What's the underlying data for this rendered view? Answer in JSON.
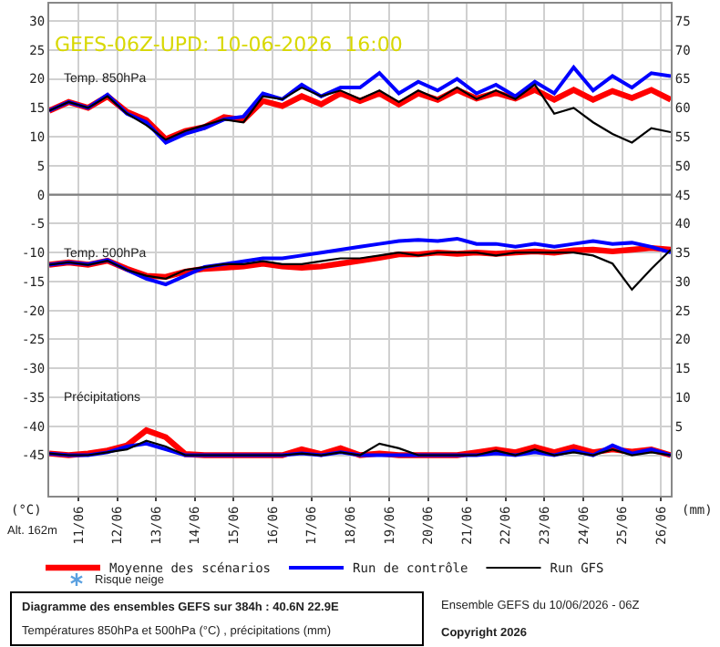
{
  "chart_data": {
    "type": "line",
    "title": "GEFS-06Z-UPD: 10-06-2026  16:00",
    "ylabel": "(°C)",
    "y2label": "(mm)",
    "x": [
      "2026-06-10T06:00",
      "2026-06-10T18:00",
      "2026-06-11T06:00",
      "2026-06-11T18:00",
      "2026-06-12T06:00",
      "2026-06-12T18:00",
      "2026-06-13T06:00",
      "2026-06-13T18:00",
      "2026-06-14T06:00",
      "2026-06-14T18:00",
      "2026-06-15T06:00",
      "2026-06-15T18:00",
      "2026-06-16T06:00",
      "2026-06-16T18:00",
      "2026-06-17T06:00",
      "2026-06-17T18:00",
      "2026-06-18T06:00",
      "2026-06-18T18:00",
      "2026-06-19T06:00",
      "2026-06-19T18:00",
      "2026-06-20T06:00",
      "2026-06-20T18:00",
      "2026-06-21T06:00",
      "2026-06-21T18:00",
      "2026-06-22T06:00",
      "2026-06-22T18:00",
      "2026-06-23T06:00",
      "2026-06-23T18:00",
      "2026-06-24T06:00",
      "2026-06-24T18:00",
      "2026-06-25T06:00",
      "2026-06-25T18:00",
      "2026-06-26T06:00"
    ],
    "series": [
      {
        "name": "Moyenne des scénarios",
        "color": "#ff0000",
        "values": [
          14.5,
          16,
          15,
          17,
          14.3,
          12.9,
          9.6,
          11,
          11.7,
          13.4,
          12.9,
          16.2,
          15.3,
          17,
          15.6,
          17.5,
          16.2,
          17.5,
          15.6,
          17.5,
          16.4,
          18.1,
          16.6,
          17.6,
          16.6,
          18.1,
          16.4,
          18.1,
          16.4,
          17.9,
          16.7,
          18.1,
          16.4
        ]
      },
      {
        "name": "Run de contrôle",
        "color": "#0000ff",
        "values": [
          14.5,
          16,
          15,
          17.3,
          14,
          12.5,
          9,
          10.5,
          11.5,
          13,
          13.5,
          17.5,
          16.5,
          19,
          17,
          18.5,
          18.5,
          21,
          17.5,
          19.5,
          18,
          20,
          17.5,
          19,
          17,
          19.5,
          17.5,
          22,
          18,
          20.5,
          18.5,
          21,
          20.5
        ]
      },
      {
        "name": "Run GFS",
        "color": "#000000",
        "values": [
          14.5,
          16,
          15,
          17,
          14,
          12,
          9.5,
          11,
          12,
          13,
          12.5,
          17,
          16.5,
          18.5,
          17,
          18,
          16.5,
          18,
          16,
          18,
          16.5,
          18.5,
          16.5,
          18,
          16.5,
          19,
          14,
          15,
          12.5,
          10.5,
          9,
          11.5,
          10.8
        ]
      },
      {
        "color": "#ff0000",
        "values": [
          -12.1,
          -11.7,
          -12.1,
          -11.4,
          -12.8,
          -14,
          -14.2,
          -13.3,
          -12.8,
          -12.6,
          -12.4,
          -11.9,
          -12.4,
          -12.6,
          -12.4,
          -11.9,
          -11.4,
          -10.9,
          -10.3,
          -10.3,
          -10,
          -10.2,
          -10,
          -10.2,
          -10,
          -9.8,
          -10,
          -9.6,
          -9.5,
          -9.8,
          -9.5,
          -9.2,
          -9.5
        ]
      },
      {
        "color": "#0000ff",
        "values": [
          -12.1,
          -11.7,
          -12,
          -11.3,
          -13,
          -14.5,
          -15.5,
          -14,
          -12.5,
          -12,
          -11.5,
          -11,
          -11,
          -10.5,
          -10,
          -9.5,
          -9,
          -8.5,
          -8,
          -7.8,
          -8,
          -7.6,
          -8.5,
          -8.5,
          -9,
          -8.5,
          -9,
          -8.5,
          -8,
          -8.5,
          -8.3,
          -9,
          -10
        ]
      },
      {
        "color": "#000000",
        "values": [
          -12.1,
          -11.7,
          -12.1,
          -11.4,
          -13,
          -14,
          -14.5,
          -13,
          -12.5,
          -12,
          -12,
          -11.5,
          -12,
          -12,
          -11.5,
          -11,
          -11,
          -10.5,
          -10,
          -10.5,
          -10,
          -10,
          -10,
          -10.5,
          -10,
          -10,
          -10,
          -10,
          -10.5,
          -11.9,
          -16.4,
          -12.8,
          -9.5
        ]
      },
      {
        "color": "#ff0000",
        "axis": "y2",
        "values": [
          0.3,
          0,
          0.3,
          0.8,
          1.7,
          4.3,
          3.1,
          0.2,
          0,
          0,
          0,
          0,
          0,
          1,
          0.2,
          1.2,
          0,
          0.3,
          0,
          0,
          0,
          0,
          0.5,
          1,
          0.5,
          1.4,
          0.5,
          1.4,
          0.5,
          1,
          0.6,
          1,
          0
        ]
      },
      {
        "color": "#0000ff",
        "axis": "y2",
        "values": [
          0.3,
          0,
          0,
          0.5,
          1.5,
          2,
          1,
          0,
          0,
          0,
          0,
          0,
          0,
          0.3,
          0,
          0.5,
          0,
          0,
          0,
          0,
          0,
          0,
          0,
          0.3,
          0,
          0.5,
          0,
          0.8,
          0,
          1.7,
          0.3,
          1,
          0
        ]
      },
      {
        "color": "#000000",
        "axis": "y2",
        "values": [
          0.3,
          0,
          0,
          0.5,
          1,
          2.5,
          1.5,
          0,
          0,
          0,
          0,
          0,
          0,
          0.3,
          0,
          0.5,
          0,
          2,
          1.2,
          0,
          0,
          0,
          0,
          0.8,
          0,
          1,
          0,
          0.5,
          0,
          1,
          0,
          0.5,
          0
        ]
      }
    ],
    "xlim": [
      "2026-06-10T06:00",
      "2026-06-26T06:00"
    ],
    "xticks": [
      {
        "value": "2026-06-11",
        "label": "11/06"
      },
      {
        "value": "2026-06-12",
        "label": "12/06"
      },
      {
        "value": "2026-06-13",
        "label": "13/06"
      },
      {
        "value": "2026-06-14",
        "label": "14/06"
      },
      {
        "value": "2026-06-15",
        "label": "15/06"
      },
      {
        "value": "2026-06-16",
        "label": "16/06"
      },
      {
        "value": "2026-06-17",
        "label": "17/06"
      },
      {
        "value": "2026-06-18",
        "label": "18/06"
      },
      {
        "value": "2026-06-19",
        "label": "19/06"
      },
      {
        "value": "2026-06-20",
        "label": "20/06"
      },
      {
        "value": "2026-06-21",
        "label": "21/06"
      },
      {
        "value": "2026-06-22",
        "label": "22/06"
      },
      {
        "value": "2026-06-23",
        "label": "23/06"
      },
      {
        "value": "2026-06-24",
        "label": "24/06"
      },
      {
        "value": "2026-06-25",
        "label": "25/06"
      },
      {
        "value": "2026-06-26",
        "label": "26/06"
      }
    ],
    "ylim": [
      -52,
      33
    ],
    "yticks": [
      -45,
      -40,
      -35,
      -30,
      -25,
      -20,
      -15,
      -10,
      -5,
      0,
      5,
      10,
      15,
      20,
      25,
      30
    ],
    "y2lim": [
      -7,
      78
    ],
    "y2ticks": [
      0,
      5,
      10,
      15,
      20,
      25,
      30,
      35,
      40,
      45,
      50,
      55,
      60,
      65,
      70,
      75
    ],
    "ref_lines": [
      {
        "axis": "y",
        "value": 0,
        "color": "#808080"
      }
    ],
    "grid": true,
    "legend": "bottom",
    "marker": "none",
    "line_style": "solid",
    "annotations": [
      "Temp. 850hPa",
      "Temp. 500hPa",
      "Précipitations",
      "Alt. 162m",
      "Risque neige",
      "Diagramme des ensembles GEFS sur 384h : 40.6N 22.9E",
      "Températures 850hPa et 500hPa (°C) , précipitations (mm)",
      "Ensemble GEFS du 10/06/2026 - 06Z",
      "Copyright 2026"
    ]
  }
}
